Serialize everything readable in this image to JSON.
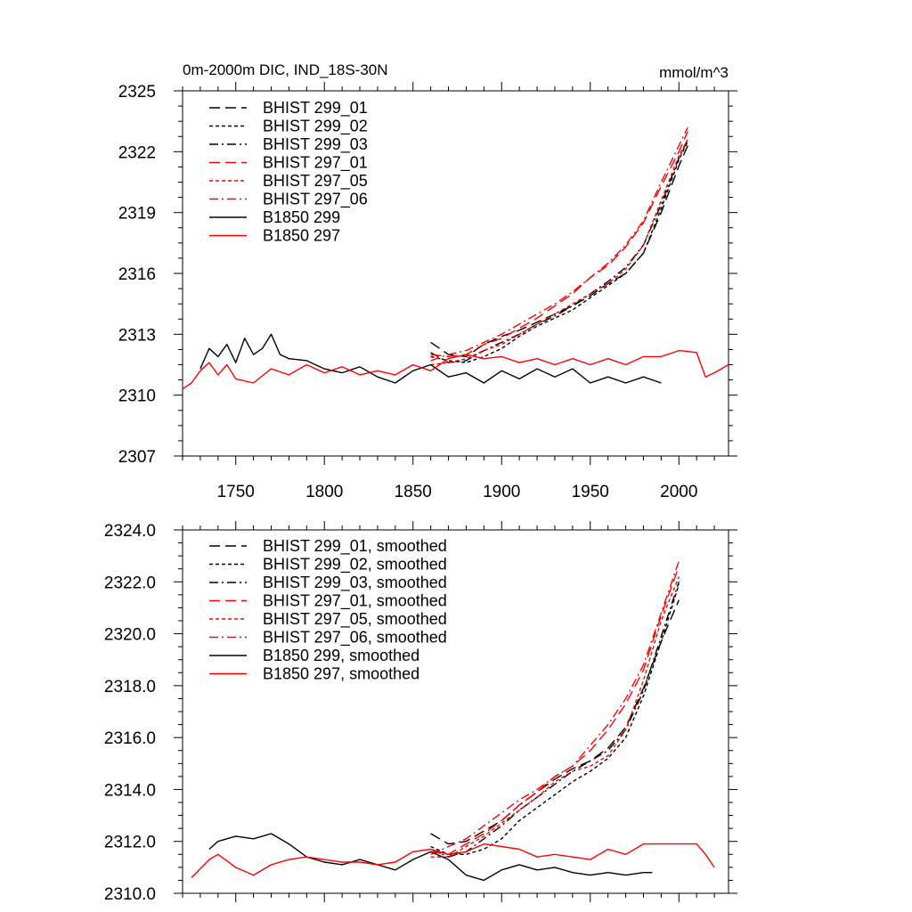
{
  "chart_data": [
    {
      "type": "line",
      "title": "0m-2000m DIC, IND_18S-30N",
      "units": "mmol/m^3",
      "xlim": [
        1720,
        2028
      ],
      "ylim": [
        2307,
        2325
      ],
      "x_ticks": [
        1750,
        1800,
        1850,
        1900,
        1950,
        2000
      ],
      "y_ticks": [
        2307,
        2310,
        2313,
        2316,
        2319,
        2322,
        2325
      ],
      "y_tick_labels": [
        "2307",
        "2310",
        "2313",
        "2316",
        "2319",
        "2322",
        "2325"
      ],
      "legend_position": "top-left",
      "series": [
        {
          "name": "BHIST 299_01",
          "color": "#000000",
          "dash": "long-dash",
          "x": [
            1860,
            1870,
            1880,
            1890,
            1900,
            1910,
            1920,
            1930,
            1940,
            1950,
            1960,
            1970,
            1980,
            1990,
            2000,
            2005
          ],
          "y": [
            2312.6,
            2312.0,
            2311.9,
            2312.5,
            2312.9,
            2313.2,
            2313.6,
            2314.0,
            2314.4,
            2314.9,
            2315.5,
            2316.0,
            2317.0,
            2319.0,
            2321.3,
            2322.3
          ]
        },
        {
          "name": "BHIST 299_02",
          "color": "#000000",
          "dash": "short-dash",
          "x": [
            1860,
            1870,
            1880,
            1890,
            1900,
            1910,
            1920,
            1930,
            1940,
            1950,
            1960,
            1970,
            1980,
            1990,
            2000,
            2005
          ],
          "y": [
            2311.9,
            2311.7,
            2311.6,
            2311.9,
            2312.3,
            2312.9,
            2313.4,
            2313.8,
            2314.2,
            2314.8,
            2315.4,
            2316.0,
            2317.0,
            2319.2,
            2321.6,
            2322.5
          ]
        },
        {
          "name": "BHIST 299_03",
          "color": "#000000",
          "dash": "dash-dot",
          "x": [
            1860,
            1870,
            1880,
            1890,
            1900,
            1910,
            1920,
            1930,
            1940,
            1950,
            1960,
            1970,
            1980,
            1990,
            2000,
            2005
          ],
          "y": [
            2312.1,
            2311.6,
            2311.7,
            2312.2,
            2312.6,
            2313.0,
            2313.5,
            2313.9,
            2314.4,
            2315.0,
            2315.6,
            2316.3,
            2317.4,
            2319.4,
            2321.7,
            2322.6
          ]
        },
        {
          "name": "BHIST 297_01",
          "color": "#ff0000",
          "dash": "long-dash",
          "x": [
            1860,
            1870,
            1880,
            1890,
            1900,
            1910,
            1920,
            1930,
            1940,
            1950,
            1960,
            1970,
            1980,
            1990,
            2000,
            2005
          ],
          "y": [
            2312.0,
            2311.9,
            2312.0,
            2312.5,
            2312.8,
            2313.3,
            2313.8,
            2314.4,
            2315.0,
            2315.8,
            2316.4,
            2317.3,
            2318.5,
            2320.3,
            2322.0,
            2323.0
          ]
        },
        {
          "name": "BHIST 297_05",
          "color": "#ff0000",
          "dash": "short-dash",
          "x": [
            1860,
            1870,
            1880,
            1890,
            1900,
            1910,
            1920,
            1930,
            1940,
            1950,
            1960,
            1970,
            1980,
            1990,
            2000,
            2005
          ],
          "y": [
            2311.5,
            2311.6,
            2311.8,
            2312.2,
            2312.5,
            2313.0,
            2313.5,
            2314.0,
            2314.5,
            2315.0,
            2315.5,
            2316.2,
            2317.4,
            2319.6,
            2321.8,
            2322.6
          ]
        },
        {
          "name": "BHIST 297_06",
          "color": "#ff0000",
          "dash": "dash-dot",
          "x": [
            1860,
            1870,
            1880,
            1890,
            1900,
            1910,
            1920,
            1930,
            1940,
            1950,
            1960,
            1970,
            1980,
            1990,
            2000,
            2005
          ],
          "y": [
            2311.7,
            2312.0,
            2312.2,
            2312.6,
            2313.0,
            2313.5,
            2314.0,
            2314.5,
            2315.1,
            2315.8,
            2316.5,
            2317.4,
            2318.6,
            2320.5,
            2322.3,
            2323.2
          ]
        },
        {
          "name": "B1850 299",
          "color": "#000000",
          "dash": "solid",
          "x": [
            1730,
            1735,
            1740,
            1745,
            1750,
            1755,
            1760,
            1765,
            1770,
            1775,
            1780,
            1790,
            1800,
            1810,
            1820,
            1830,
            1840,
            1850,
            1860,
            1870,
            1880,
            1890,
            1900,
            1910,
            1920,
            1930,
            1940,
            1950,
            1960,
            1970,
            1980,
            1990
          ],
          "y": [
            2311.3,
            2312.3,
            2311.9,
            2312.5,
            2311.6,
            2312.8,
            2312.0,
            2312.3,
            2313.0,
            2312.0,
            2311.8,
            2311.7,
            2311.3,
            2311.1,
            2311.4,
            2310.9,
            2310.6,
            2311.2,
            2311.5,
            2310.9,
            2311.1,
            2310.6,
            2311.2,
            2310.8,
            2311.3,
            2310.9,
            2311.3,
            2310.6,
            2310.9,
            2310.6,
            2310.9,
            2310.6
          ]
        },
        {
          "name": "B1850 297",
          "color": "#ff0000",
          "dash": "solid",
          "x": [
            1720,
            1725,
            1730,
            1735,
            1740,
            1745,
            1750,
            1760,
            1770,
            1780,
            1790,
            1800,
            1810,
            1820,
            1830,
            1840,
            1850,
            1860,
            1870,
            1880,
            1890,
            1900,
            1910,
            1920,
            1930,
            1940,
            1950,
            1960,
            1970,
            1980,
            1990,
            2000,
            2010,
            2015,
            2020,
            2028
          ],
          "y": [
            2310.3,
            2310.6,
            2311.2,
            2311.6,
            2311.0,
            2311.5,
            2310.8,
            2310.6,
            2311.3,
            2311.0,
            2311.5,
            2311.1,
            2311.4,
            2311.0,
            2311.2,
            2311.0,
            2311.5,
            2311.2,
            2311.8,
            2312.0,
            2311.8,
            2311.9,
            2311.6,
            2311.8,
            2311.5,
            2311.8,
            2311.5,
            2311.8,
            2311.5,
            2311.9,
            2311.9,
            2312.2,
            2312.1,
            2310.9,
            2311.1,
            2311.5
          ]
        }
      ]
    },
    {
      "type": "line",
      "xlim": [
        1720,
        2028
      ],
      "ylim": [
        2310,
        2324
      ],
      "x_ticks": [
        1750,
        1800,
        1850,
        1900,
        1950,
        2000
      ],
      "y_ticks": [
        2310,
        2312,
        2314,
        2316,
        2318,
        2320,
        2322,
        2324
      ],
      "y_tick_labels": [
        "2310.0",
        "2312.0",
        "2314.0",
        "2316.0",
        "2318.0",
        "2320.0",
        "2322.0",
        "2324.0"
      ],
      "legend_position": "top-left",
      "series": [
        {
          "name": "BHIST 299_01, smoothed",
          "color": "#000000",
          "dash": "long-dash",
          "x": [
            1860,
            1870,
            1880,
            1890,
            1900,
            1910,
            1920,
            1930,
            1940,
            1950,
            1960,
            1970,
            1980,
            1990,
            2000
          ],
          "y": [
            2312.3,
            2311.9,
            2312.0,
            2312.4,
            2312.8,
            2313.4,
            2313.9,
            2314.4,
            2314.8,
            2315.1,
            2315.6,
            2316.4,
            2317.9,
            2319.7,
            2321.3
          ]
        },
        {
          "name": "BHIST 299_02, smoothed",
          "color": "#000000",
          "dash": "short-dash",
          "x": [
            1860,
            1870,
            1880,
            1890,
            1900,
            1910,
            1920,
            1930,
            1940,
            1950,
            1960,
            1970,
            1980,
            1990,
            2000
          ],
          "y": [
            2311.8,
            2311.5,
            2311.5,
            2311.7,
            2312.1,
            2312.8,
            2313.3,
            2313.8,
            2314.3,
            2314.7,
            2315.2,
            2316.0,
            2317.6,
            2319.7,
            2321.9
          ]
        },
        {
          "name": "BHIST 299_03, smoothed",
          "color": "#000000",
          "dash": "dash-dot",
          "x": [
            1860,
            1870,
            1880,
            1890,
            1900,
            1910,
            1920,
            1930,
            1940,
            1950,
            1960,
            1970,
            1980,
            1990,
            2000
          ],
          "y": [
            2311.7,
            2311.4,
            2311.6,
            2312.1,
            2312.6,
            2313.2,
            2313.7,
            2314.2,
            2314.7,
            2315.1,
            2315.5,
            2316.3,
            2317.8,
            2319.9,
            2322.0
          ]
        },
        {
          "name": "BHIST 297_01, smoothed",
          "color": "#ff0000",
          "dash": "long-dash",
          "x": [
            1860,
            1870,
            1880,
            1890,
            1900,
            1910,
            1920,
            1930,
            1940,
            1950,
            1960,
            1970,
            1980,
            1990,
            2000
          ],
          "y": [
            2311.6,
            2311.5,
            2311.9,
            2312.3,
            2312.8,
            2313.4,
            2313.9,
            2314.5,
            2314.9,
            2315.5,
            2316.3,
            2317.3,
            2318.6,
            2320.7,
            2322.6
          ]
        },
        {
          "name": "BHIST 297_05, smoothed",
          "color": "#ff0000",
          "dash": "short-dash",
          "x": [
            1860,
            1870,
            1880,
            1890,
            1900,
            1910,
            1920,
            1930,
            1940,
            1950,
            1960,
            1970,
            1980,
            1990,
            2000
          ],
          "y": [
            2311.4,
            2311.4,
            2311.8,
            2312.2,
            2312.7,
            2313.2,
            2313.7,
            2314.3,
            2314.7,
            2314.9,
            2315.3,
            2316.3,
            2318.2,
            2320.5,
            2322.2
          ]
        },
        {
          "name": "BHIST 297_06, smoothed",
          "color": "#ff0000",
          "dash": "dash-dot",
          "x": [
            1860,
            1870,
            1880,
            1890,
            1900,
            1910,
            1920,
            1930,
            1940,
            1950,
            1960,
            1970,
            1980,
            1990,
            2000
          ],
          "y": [
            2311.5,
            2311.8,
            2312.1,
            2312.6,
            2313.1,
            2313.6,
            2314.0,
            2314.5,
            2314.9,
            2315.7,
            2316.5,
            2317.5,
            2318.8,
            2320.8,
            2322.8
          ]
        },
        {
          "name": "B1850 299, smoothed",
          "color": "#000000",
          "dash": "solid",
          "x": [
            1735,
            1740,
            1750,
            1760,
            1770,
            1780,
            1790,
            1800,
            1810,
            1820,
            1830,
            1840,
            1850,
            1860,
            1870,
            1880,
            1890,
            1900,
            1910,
            1920,
            1930,
            1940,
            1950,
            1960,
            1970,
            1980,
            1985
          ],
          "y": [
            2311.7,
            2312.0,
            2312.2,
            2312.1,
            2312.3,
            2311.9,
            2311.4,
            2311.2,
            2311.1,
            2311.3,
            2311.1,
            2310.9,
            2311.3,
            2311.6,
            2311.3,
            2310.7,
            2310.5,
            2310.9,
            2311.1,
            2310.9,
            2311.0,
            2310.8,
            2310.7,
            2310.8,
            2310.7,
            2310.8,
            2310.8
          ]
        },
        {
          "name": "B1850 297, smoothed",
          "color": "#ff0000",
          "dash": "solid",
          "x": [
            1725,
            1735,
            1740,
            1750,
            1760,
            1770,
            1780,
            1790,
            1800,
            1810,
            1820,
            1830,
            1840,
            1850,
            1860,
            1870,
            1880,
            1890,
            1900,
            1910,
            1920,
            1930,
            1940,
            1950,
            1960,
            1970,
            1980,
            1990,
            2000,
            2010,
            2015,
            2020
          ],
          "y": [
            2310.6,
            2311.3,
            2311.5,
            2311.0,
            2310.7,
            2311.1,
            2311.3,
            2311.4,
            2311.3,
            2311.2,
            2311.2,
            2311.1,
            2311.2,
            2311.6,
            2311.7,
            2311.5,
            2311.6,
            2311.9,
            2311.8,
            2311.7,
            2311.4,
            2311.5,
            2311.4,
            2311.3,
            2311.7,
            2311.5,
            2311.9,
            2311.9,
            2311.9,
            2311.9,
            2311.5,
            2311.0
          ]
        }
      ]
    }
  ]
}
